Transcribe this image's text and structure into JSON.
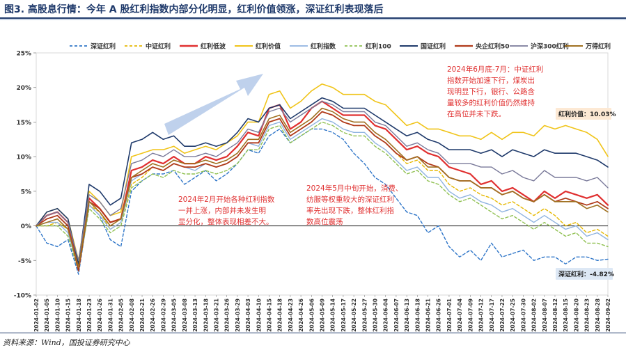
{
  "title": "图3. 高股息行情：今年 A 股红利指数内部分化明显，红利价值领涨，深证红利表现落后",
  "source": "资料来源：Wind，国投证券研究中心",
  "chart_data": {
    "type": "line",
    "ylim": [
      -10,
      25
    ],
    "yticks": [
      "-10%",
      "-5%",
      "0%",
      "5%",
      "10%",
      "15%",
      "20%",
      "25%"
    ],
    "ytick_values": [
      -10,
      -5,
      0,
      5,
      10,
      15,
      20,
      25
    ],
    "xticks": [
      "2024-01-02",
      "2024-01-05",
      "2024-01-10",
      "2024-01-15",
      "2024-01-18",
      "2024-01-23",
      "2024-01-26",
      "2024-01-31",
      "2024-02-05",
      "2024-02-08",
      "2024-02-21",
      "2024-02-26",
      "2024-02-29",
      "2024-03-05",
      "2024-03-08",
      "2024-03-13",
      "2024-03-18",
      "2024-03-21",
      "2024-03-26",
      "2024-03-29",
      "2024-04-03",
      "2024-04-10",
      "2024-04-15",
      "2024-04-18",
      "2024-04-23",
      "2024-04-26",
      "2024-05-06",
      "2024-05-09",
      "2024-05-14",
      "2024-05-17",
      "2024-05-22",
      "2024-05-27",
      "2024-05-30",
      "2024-06-04",
      "2024-06-07",
      "2024-06-13",
      "2024-06-18",
      "2024-06-21",
      "2024-06-26",
      "2024-07-01",
      "2024-07-04",
      "2024-07-09",
      "2024-07-12",
      "2024-07-17",
      "2024-07-22",
      "2024-07-25",
      "2024-07-30",
      "2024-08-02",
      "2024-08-07",
      "2024-08-12",
      "2024-08-15",
      "2024-08-20",
      "2024-08-23",
      "2024-08-28",
      "2024-09-02"
    ],
    "series": [
      {
        "name": "深证红利",
        "color": "#2e75c8",
        "dash": "4,3",
        "width": 1.4,
        "values": [
          0,
          -2.5,
          -3,
          -2,
          -7,
          3,
          1.5,
          -2,
          -3,
          5,
          6.5,
          7.5,
          7.5,
          8,
          6,
          7,
          8,
          6.5,
          7.5,
          9,
          11,
          10.5,
          13,
          14,
          12,
          13,
          14,
          14,
          13.5,
          12.5,
          10.5,
          9,
          7,
          6,
          4,
          2,
          1.5,
          -1,
          0,
          -3,
          -4.5,
          -3.5,
          -5,
          -2.5,
          -4.5,
          -4,
          -3.5,
          -5,
          -4.5,
          -4.5,
          -5.5,
          -4.5,
          -4.5,
          -5,
          -4.82
        ]
      },
      {
        "name": "中证红利",
        "color": "#e6b800",
        "dash": "4,3",
        "width": 1.4,
        "values": [
          0,
          0,
          0.5,
          -0.5,
          -6,
          3,
          2,
          -0.5,
          0.5,
          6,
          7,
          8.5,
          8,
          9,
          8.5,
          8.5,
          9,
          8.5,
          9,
          10,
          12,
          12,
          15,
          15.5,
          13,
          14,
          15,
          16.5,
          16,
          15,
          14.5,
          14.5,
          13,
          12,
          10.5,
          9,
          9.5,
          8,
          8,
          6,
          5,
          5.5,
          4.5,
          4,
          3,
          3.5,
          2.5,
          1.5,
          2.5,
          1.5,
          0,
          0.5,
          -1,
          -0.5,
          -1.5
        ]
      },
      {
        "name": "红利低波",
        "color": "#e03030",
        "dash": "",
        "width": 2.2,
        "values": [
          0,
          1.5,
          2,
          0.5,
          -6,
          4,
          2.5,
          0.5,
          1,
          8,
          8.5,
          9.5,
          9,
          10,
          9,
          9,
          10,
          9.5,
          10,
          11.5,
          13.5,
          13,
          17,
          17.5,
          14,
          15,
          17,
          18,
          17,
          16,
          16,
          16,
          14.5,
          14,
          12.5,
          11,
          11.5,
          10.5,
          10,
          8.5,
          8,
          7.5,
          6,
          6.5,
          5,
          5.5,
          4.5,
          3.5,
          5,
          4,
          5,
          4.5,
          4,
          4.5,
          3
        ]
      },
      {
        "name": "红利价值",
        "color": "#f0c419",
        "dash": "",
        "width": 1.6,
        "values": [
          0,
          2,
          2.5,
          1,
          -5,
          5,
          3.5,
          1.5,
          2,
          10,
          10.5,
          11,
          11,
          11.5,
          10.5,
          11,
          11.5,
          11,
          12,
          13,
          15,
          15,
          19,
          19.5,
          17,
          18,
          19.5,
          20.5,
          20,
          19,
          19,
          19,
          18,
          17.5,
          16,
          14.5,
          15,
          14,
          14,
          13.5,
          13,
          13,
          12.5,
          13.5,
          12.5,
          13.5,
          13.5,
          13,
          14.5,
          14,
          14.5,
          14,
          13.5,
          12.5,
          10.03
        ]
      },
      {
        "name": "红利指数",
        "color": "#8fb3e0",
        "dash": "",
        "width": 1.4,
        "values": [
          0,
          0.5,
          0.5,
          -1,
          -6,
          3,
          1.5,
          -0.5,
          0.5,
          6.5,
          7.5,
          8.5,
          8,
          9,
          8.5,
          8,
          9,
          8.5,
          9,
          10,
          12,
          11.5,
          14.5,
          15,
          12.5,
          13.5,
          14.5,
          15.5,
          15,
          14,
          13.5,
          13.5,
          12,
          11,
          9.5,
          8,
          8.5,
          7,
          7,
          5,
          4,
          4.5,
          3.5,
          3,
          2,
          2.5,
          1.5,
          0.5,
          1.5,
          0.5,
          -0.5,
          0,
          -1.5,
          -1,
          -2
        ]
      },
      {
        "name": "红利100",
        "color": "#8fc050",
        "dash": "4,3",
        "width": 1.4,
        "values": [
          0,
          0,
          0,
          -1.5,
          -6.5,
          2.5,
          1,
          -1,
          0,
          5.5,
          6.5,
          7.5,
          7,
          8,
          7.5,
          7.5,
          8,
          7.5,
          8,
          9,
          11,
          11,
          14,
          14.5,
          12,
          13,
          14,
          15,
          14.5,
          13.5,
          13,
          13,
          11.5,
          10.5,
          9,
          7.5,
          8,
          6.5,
          6,
          4.5,
          3.5,
          4,
          3,
          2,
          1,
          1.5,
          0.5,
          -0.5,
          0.5,
          -0.5,
          -1.5,
          -1,
          -2.5,
          -2.5,
          -3
        ]
      },
      {
        "name": "国证红利",
        "color": "#1f3a6b",
        "dash": "",
        "width": 1.6,
        "values": [
          0,
          2,
          2.5,
          1,
          -5.5,
          6,
          5,
          3,
          4,
          12,
          12.5,
          13.5,
          12.5,
          13,
          11.5,
          11.5,
          12,
          11.5,
          12,
          13.5,
          15.5,
          15,
          17,
          17.5,
          15.5,
          16.5,
          17.5,
          18.5,
          18,
          17,
          17,
          17,
          16,
          15,
          14,
          13,
          13.5,
          12.5,
          12,
          11,
          11,
          11,
          10.5,
          11,
          10,
          11,
          10.5,
          10,
          11,
          10.5,
          10.5,
          10.5,
          10,
          9.5,
          8.5
        ]
      },
      {
        "name": "央企红利50",
        "color": "#b03a1a",
        "dash": "",
        "width": 1.8,
        "values": [
          0,
          1,
          1.5,
          0,
          -6.5,
          3.5,
          2.5,
          0.5,
          1,
          7,
          7.5,
          8.5,
          8,
          9,
          8.5,
          8.5,
          9,
          8.5,
          9,
          10,
          12,
          12,
          15,
          15.5,
          13,
          14,
          15,
          16.5,
          16,
          15,
          14.5,
          14.5,
          13,
          12,
          10.5,
          9.5,
          10,
          9,
          8.5,
          7,
          6.5,
          6.5,
          5.5,
          5.5,
          4.5,
          5,
          4,
          3.5,
          4.5,
          3.5,
          4,
          3.5,
          3,
          3.5,
          2.5
        ]
      },
      {
        "name": "沪深300红利",
        "color": "#7a7a9a",
        "dash": "",
        "width": 1.4,
        "values": [
          0,
          1.5,
          2,
          0.5,
          -5,
          4.5,
          3.5,
          1.5,
          2.5,
          9,
          9.5,
          10.5,
          10,
          11,
          10,
          10,
          10.5,
          10,
          11,
          12,
          14,
          13.5,
          16.5,
          17,
          15,
          16,
          17,
          18,
          17.5,
          16.5,
          16.5,
          16.5,
          15,
          14.5,
          13,
          11.5,
          12,
          11,
          10.5,
          9,
          9,
          9,
          8.5,
          8.5,
          7.5,
          8,
          7,
          6.5,
          8,
          7,
          7,
          7,
          6.5,
          7,
          5.5
        ]
      },
      {
        "name": "万得红利",
        "color": "#a07020",
        "dash": "",
        "width": 1.6,
        "values": [
          0,
          0.5,
          1,
          -0.5,
          -6,
          3.5,
          2,
          0,
          1,
          7,
          8,
          9,
          8.5,
          9.5,
          9,
          9,
          9.5,
          9,
          9.5,
          10.5,
          12.5,
          12.5,
          15.5,
          16,
          13.5,
          14.5,
          15.5,
          17,
          16.5,
          15.5,
          15,
          15,
          13.5,
          12.5,
          11,
          9.5,
          10,
          8.5,
          8.5,
          7,
          6.5,
          6.5,
          5.5,
          5.5,
          4.5,
          5,
          4,
          3.5,
          4.5,
          3.5,
          3.5,
          3.5,
          2.5,
          3,
          2
        ]
      }
    ],
    "annotations": [
      {
        "id": "june_july",
        "color": "#e03030",
        "lines": [
          "2024年6月底-7月：中证红利",
          "指数开始加速下行，煤炭出",
          "现明显下行，银行、公路含",
          "量较多的红利价值仍然维持",
          "在高位并未下跌。"
        ]
      },
      {
        "id": "feb",
        "color": "#e03030",
        "lines": [
          "2024年2月开始各种红利指数",
          "一并上涨，内部并未发生明",
          "显分化，整体表现相差不大。"
        ]
      },
      {
        "id": "may",
        "color": "#e03030",
        "lines": [
          "2024年5月中旬开始，消费、",
          "纺服等权重较大的深证红利",
          "率先出现下跌，整体红利指",
          "数高位震荡"
        ]
      }
    ],
    "end_labels": [
      {
        "text": "红利价值：10.03%",
        "series": "红利价值",
        "value": 10.03
      },
      {
        "text": "深证红利：-4.82%",
        "series": "深证红利",
        "value": -4.82
      }
    ]
  }
}
